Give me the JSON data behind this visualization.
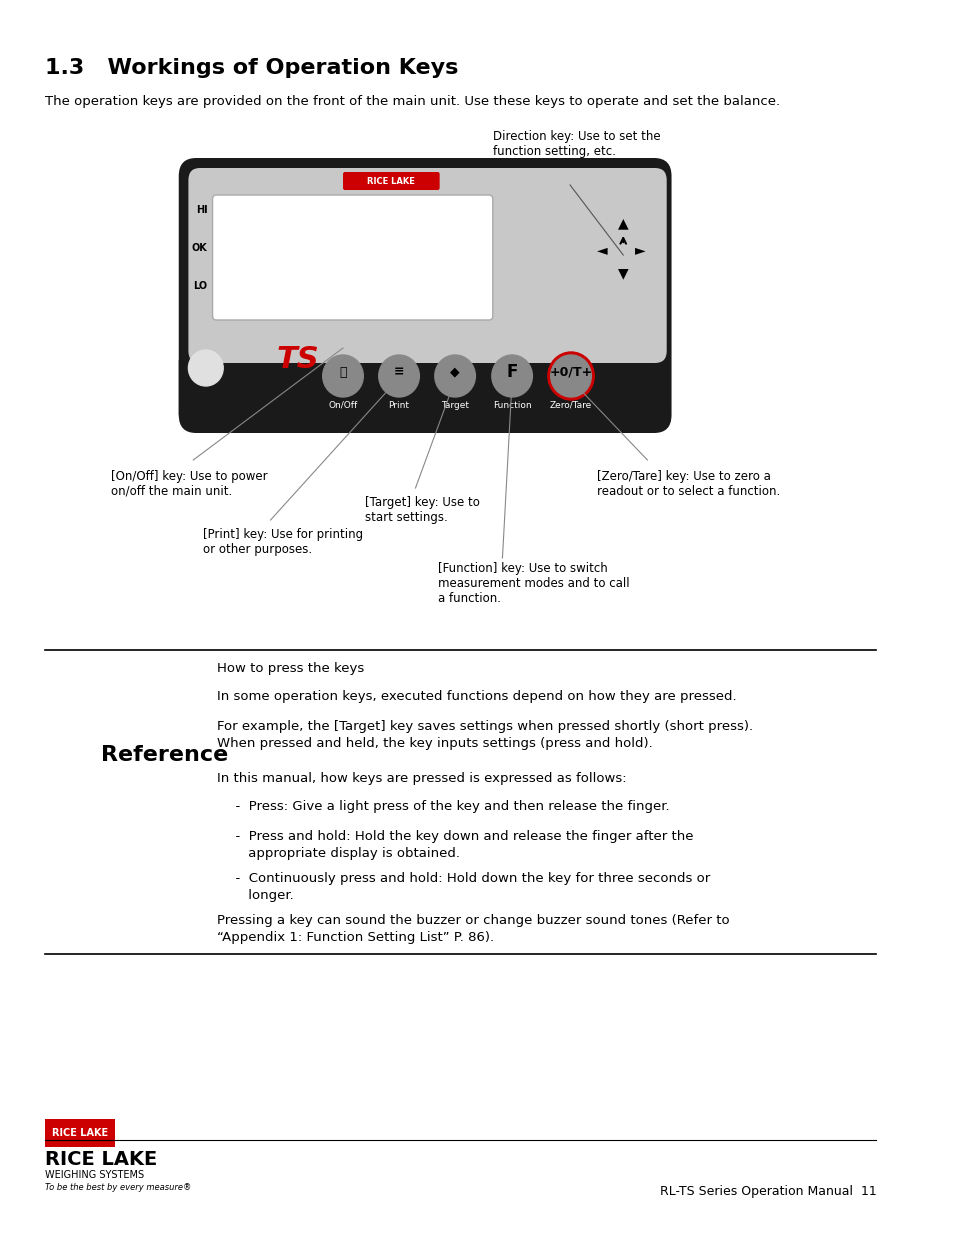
{
  "title": "1.3   Workings of Operation Keys",
  "title_fontsize": 16,
  "bg_color": "#ffffff",
  "text_color": "#000000",
  "body_text": "The operation keys are provided on the front of the main unit. Use these keys to operate and set the balance.",
  "direction_label": "Direction key: Use to set the\nfunction setting, etc.",
  "onoff_label": "[On/Off] key: Use to power\non/off the main unit.",
  "print_label": "[Print] key: Use for printing\nor other purposes.",
  "target_label": "[Target] key: Use to\nstart settings.",
  "function_label": "[Function] key: Use to switch\nmeasurement modes and to call\na function.",
  "zerotare_label": "[Zero/Tare] key: Use to zero a\nreadout or to select a function.",
  "ref_title": "How to press the keys",
  "ref_heading": "Reference",
  "ref_body1": "In some operation keys, executed functions depend on how they are pressed.",
  "ref_body2": "For example, the [Target] key saves settings when pressed shortly (short press).\nWhen pressed and held, the key inputs settings (press and hold).",
  "ref_body3": "In this manual, how keys are pressed is expressed as follows:",
  "ref_bullet1": "  -  Press: Give a light press of the key and then release the finger.",
  "ref_bullet2": "  -  Press and hold: Hold the key down and release the finger after the\n     appropriate display is obtained.",
  "ref_bullet3": "  -  Continuously press and hold: Hold down the key for three seconds or\n     longer.",
  "ref_body4": "Pressing a key can sound the buzzer or change buzzer sound tones (Refer to\n“Appendix 1: Function Setting List” P. 86).",
  "footer_right": "RL-TS Series Operation Manual  11",
  "device_bg": "#1a1a1a",
  "device_panel": "#c8c8c8",
  "screen_bg": "#ffffff",
  "key_bg": "#888888",
  "zerotare_ring": "#cc0000",
  "red_logo_bg": "#cc0000",
  "ts_red": "#cc0000"
}
